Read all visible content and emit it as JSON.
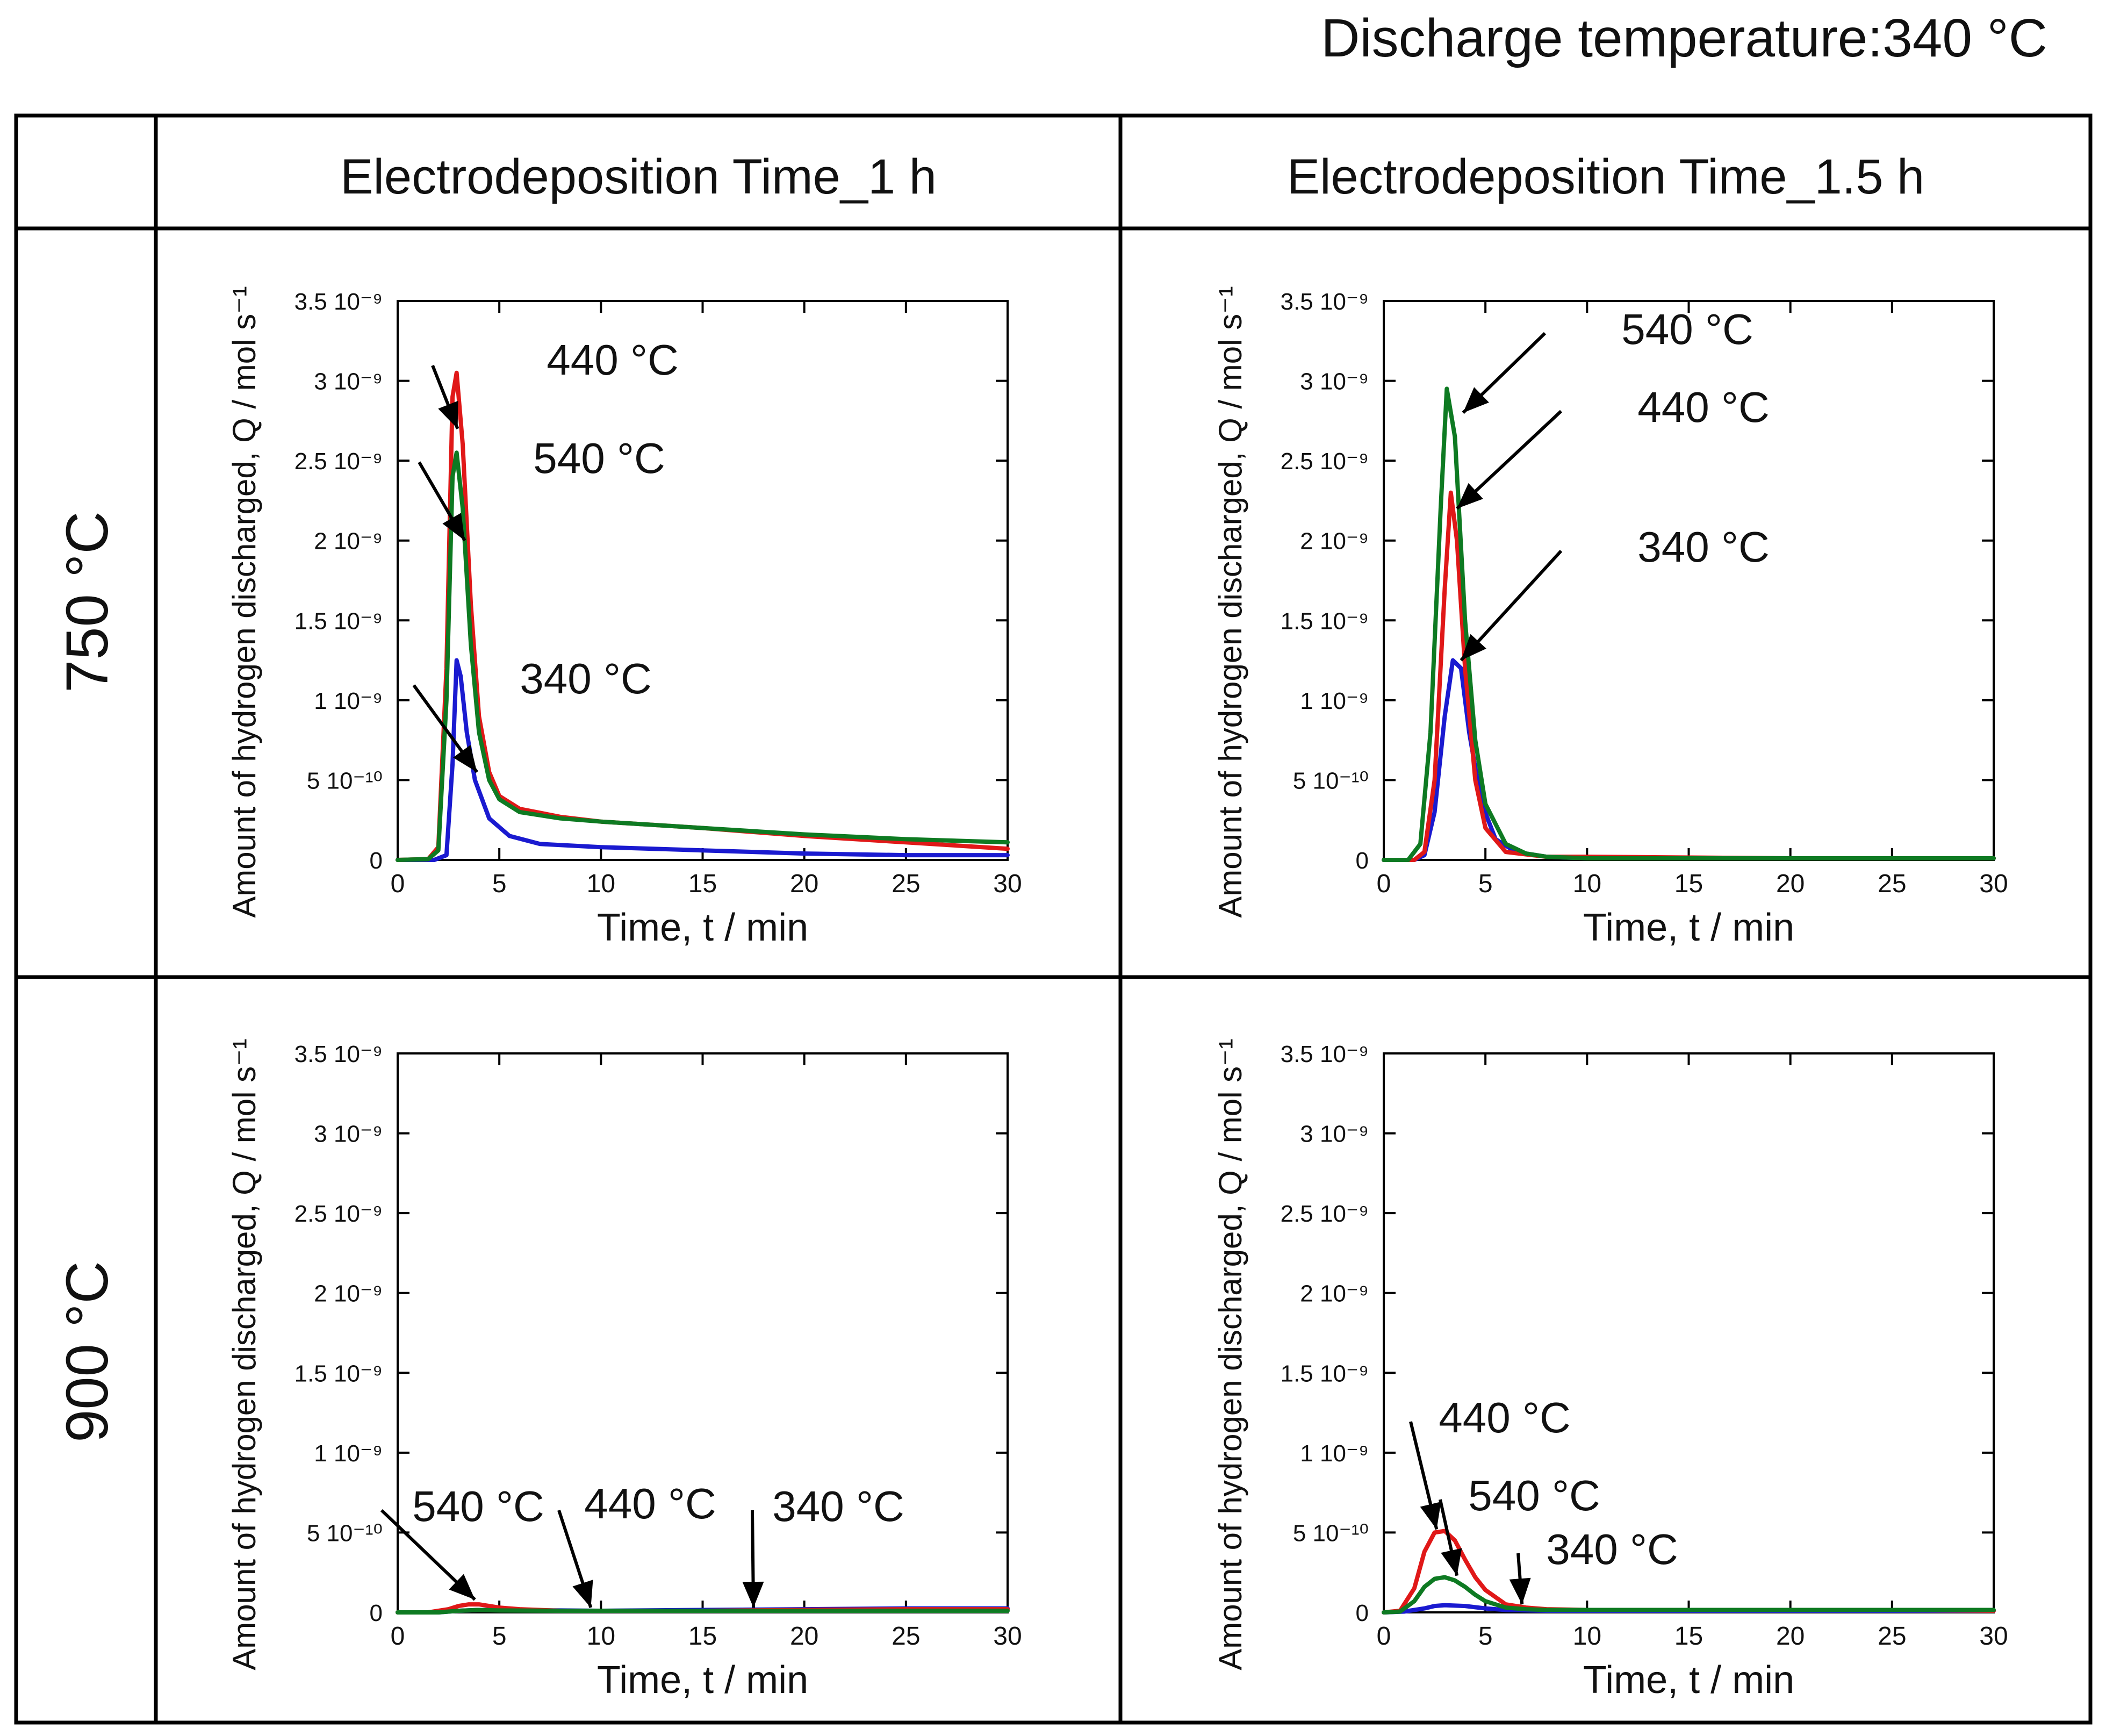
{
  "header": {
    "title": "Discharge temperature:340 °C"
  },
  "columns": [
    "Electrodeposition Time_1 h",
    "Electrodeposition Time_1.5 h"
  ],
  "rows": [
    "750 °C",
    "900 °C"
  ],
  "axis": {
    "ylabel": "Amount of hydrogen discharged, Q / mol s⁻¹",
    "xlabel": "Time, t / min",
    "yticks": [
      "0",
      "5 10⁻¹⁰",
      "1 10⁻⁹",
      "1.5 10⁻⁹",
      "2 10⁻⁹",
      "2.5 10⁻⁹",
      "3 10⁻⁹",
      "3.5 10⁻⁹"
    ],
    "xticks": [
      "0",
      "5",
      "10",
      "15",
      "20",
      "25",
      "30"
    ]
  },
  "colors": {
    "340": "#1a1ad0",
    "440": "#e01818",
    "540": "#0e7a22"
  },
  "chart_data": [
    {
      "type": "line",
      "title": "Electrodeposition Time_1 h / 750 °C",
      "xlabel": "Time, t / min",
      "ylabel": "Amount of hydrogen discharged, Q / mol s⁻¹",
      "xlim": [
        0,
        30
      ],
      "ylim": [
        0,
        3.5e-09
      ],
      "series": [
        {
          "name": "340 °C",
          "color": "#1a1ad0",
          "x": [
            0,
            1.8,
            2.4,
            2.7,
            2.9,
            3.1,
            3.4,
            3.8,
            4.5,
            5.5,
            7,
            10,
            15,
            20,
            25,
            30
          ],
          "y": [
            0,
            0,
            3e-11,
            6e-10,
            1.25e-09,
            1.15e-09,
            8e-10,
            5e-10,
            2.6e-10,
            1.5e-10,
            1e-10,
            8e-11,
            6e-11,
            4e-11,
            3e-11,
            3e-11
          ]
        },
        {
          "name": "440 °C",
          "color": "#e01818",
          "x": [
            0,
            1.5,
            2,
            2.4,
            2.7,
            2.9,
            3.2,
            3.6,
            4,
            4.5,
            5,
            6,
            8,
            10,
            15,
            20,
            25,
            30
          ],
          "y": [
            0,
            5e-12,
            8e-11,
            1.2e-09,
            2.9e-09,
            3.05e-09,
            2.6e-09,
            1.6e-09,
            9e-10,
            5.5e-10,
            4e-10,
            3.2e-10,
            2.7e-10,
            2.4e-10,
            2e-10,
            1.5e-10,
            1.1e-10,
            7e-11
          ]
        },
        {
          "name": "540 °C",
          "color": "#0e7a22",
          "x": [
            0,
            1.5,
            2,
            2.4,
            2.7,
            2.9,
            3.2,
            3.6,
            4,
            4.5,
            5,
            6,
            8,
            10,
            15,
            20,
            25,
            30
          ],
          "y": [
            0,
            5e-12,
            6e-11,
            1e-09,
            2.4e-09,
            2.55e-09,
            2.2e-09,
            1.35e-09,
            8e-10,
            5e-10,
            3.8e-10,
            3e-10,
            2.6e-10,
            2.4e-10,
            2e-10,
            1.6e-10,
            1.3e-10,
            1.1e-10
          ]
        }
      ],
      "annotations": [
        {
          "text": "440 °C",
          "x": 2.95,
          "y": 2.7e-09
        },
        {
          "text": "540 °C",
          "x": 3.3,
          "y": 2e-09
        },
        {
          "text": "340 °C",
          "x": 3.9,
          "y": 5.5e-10
        }
      ]
    },
    {
      "type": "line",
      "title": "Electrodeposition Time_1.5 h / 750 °C",
      "xlabel": "Time, t / min",
      "ylabel": "Amount of hydrogen discharged, Q / mol s⁻¹",
      "xlim": [
        0,
        30
      ],
      "ylim": [
        0,
        3.5e-09
      ],
      "series": [
        {
          "name": "340 °C",
          "color": "#1a1ad0",
          "x": [
            0,
            1.5,
            2,
            2.5,
            3,
            3.4,
            3.8,
            4.2,
            4.8,
            5.5,
            6.5,
            8,
            10,
            15,
            20,
            25,
            30
          ],
          "y": [
            0,
            0,
            3e-11,
            3e-10,
            9e-10,
            1.25e-09,
            1.2e-09,
            8e-10,
            3.6e-10,
            1.3e-10,
            5e-11,
            2e-11,
            1e-11,
            1e-11,
            1e-11,
            1e-11,
            1e-11
          ]
        },
        {
          "name": "440 °C",
          "color": "#e01818",
          "x": [
            0,
            1.5,
            2,
            2.5,
            3,
            3.3,
            3.6,
            4,
            4.5,
            5,
            6,
            8,
            10,
            15,
            20,
            25,
            30
          ],
          "y": [
            0,
            0,
            5e-11,
            5e-10,
            1.7e-09,
            2.3e-09,
            2e-09,
            1.2e-09,
            5e-10,
            2e-10,
            5e-11,
            2e-11,
            2e-11,
            1.5e-11,
            1e-11,
            1e-11,
            1e-11
          ]
        },
        {
          "name": "540 °C",
          "color": "#0e7a22",
          "x": [
            0,
            1.2,
            1.8,
            2.3,
            2.8,
            3.1,
            3.5,
            4,
            4.5,
            5,
            6,
            7,
            8,
            10,
            15,
            20,
            25,
            30
          ],
          "y": [
            0,
            0,
            1e-10,
            8e-10,
            2.2e-09,
            2.95e-09,
            2.65e-09,
            1.5e-09,
            7.5e-10,
            3.5e-10,
            1e-10,
            4e-11,
            2e-11,
            1e-11,
            1e-11,
            1e-11,
            1e-11,
            1e-11
          ]
        }
      ],
      "annotations": [
        {
          "text": "540 °C",
          "x": 3.9,
          "y": 2.8e-09
        },
        {
          "text": "440 °C",
          "x": 3.6,
          "y": 2.2e-09
        },
        {
          "text": "340 °C",
          "x": 3.8,
          "y": 1.25e-09
        }
      ]
    },
    {
      "type": "line",
      "title": "Electrodeposition Time_1 h / 900 °C",
      "xlabel": "Time, t / min",
      "ylabel": "Amount of hydrogen discharged, Q / mol s⁻¹",
      "xlim": [
        0,
        30
      ],
      "ylim": [
        0,
        3.5e-09
      ],
      "series": [
        {
          "name": "340 °C",
          "color": "#1a1ad0",
          "x": [
            0,
            2,
            3,
            4,
            5,
            8,
            10,
            15,
            20,
            25,
            30
          ],
          "y": [
            0,
            0,
            1e-11,
            1.5e-11,
            1.5e-11,
            1.2e-11,
            1e-11,
            1.5e-11,
            2e-11,
            2.5e-11,
            2.5e-11
          ]
        },
        {
          "name": "440 °C",
          "color": "#e01818",
          "x": [
            0,
            1.5,
            2.5,
            3,
            3.5,
            4,
            4.5,
            5,
            6,
            8,
            10,
            15,
            20,
            25,
            30
          ],
          "y": [
            0,
            0,
            2e-11,
            4e-11,
            5e-11,
            5e-11,
            4e-11,
            3e-11,
            2e-11,
            1e-11,
            1e-11,
            1e-11,
            1.5e-11,
            2e-11,
            2e-11
          ]
        },
        {
          "name": "540 °C",
          "color": "#0e7a22",
          "x": [
            0,
            2,
            3,
            4,
            5,
            8,
            10,
            15,
            20,
            25,
            30
          ],
          "y": [
            0,
            0,
            1e-11,
            1.5e-11,
            1.2e-11,
            1e-11,
            1e-11,
            1e-11,
            1e-11,
            1e-11,
            1e-11
          ]
        }
      ],
      "annotations": [
        {
          "text": "540 °C",
          "x": 3.8,
          "y": 8e-11
        },
        {
          "text": "440 °C",
          "x": 9.5,
          "y": 3e-11
        },
        {
          "text": "340 °C",
          "x": 17.5,
          "y": 3e-11
        }
      ]
    },
    {
      "type": "line",
      "title": "Electrodeposition Time_1.5 h / 900 °C",
      "xlabel": "Time, t / min",
      "ylabel": "Amount of hydrogen discharged, Q / mol s⁻¹",
      "xlim": [
        0,
        30
      ],
      "ylim": [
        0,
        3.5e-09
      ],
      "series": [
        {
          "name": "340 °C",
          "color": "#1a1ad0",
          "x": [
            0,
            1,
            2,
            2.5,
            3,
            4,
            5,
            6,
            8,
            10,
            15,
            20,
            25,
            30
          ],
          "y": [
            0,
            5e-12,
            2.5e-11,
            4e-11,
            4.5e-11,
            4e-11,
            2.5e-11,
            1.5e-11,
            1e-11,
            1e-11,
            1e-11,
            1e-11,
            1e-11,
            1e-11
          ]
        },
        {
          "name": "440 °C",
          "color": "#e01818",
          "x": [
            0,
            0.8,
            1.5,
            2,
            2.5,
            3,
            3.5,
            4,
            4.5,
            5,
            6,
            7,
            8,
            10,
            15,
            20,
            25,
            30
          ],
          "y": [
            0,
            1e-11,
            1.5e-10,
            3.8e-10,
            5e-10,
            5.1e-10,
            4.5e-10,
            3.3e-10,
            2.2e-10,
            1.4e-10,
            5e-11,
            3e-11,
            2e-11,
            1.5e-11,
            1.5e-11,
            1.5e-11,
            1.5e-11,
            1e-11
          ]
        },
        {
          "name": "540 °C",
          "color": "#0e7a22",
          "x": [
            0,
            0.8,
            1.5,
            2,
            2.5,
            3,
            3.5,
            4,
            4.5,
            5,
            6,
            7,
            8,
            10,
            15,
            20,
            25,
            30
          ],
          "y": [
            0,
            5e-12,
            7e-11,
            1.6e-10,
            2.1e-10,
            2.2e-10,
            2e-10,
            1.6e-10,
            1.1e-10,
            7e-11,
            3e-11,
            2e-11,
            1.5e-11,
            1.5e-11,
            1.5e-11,
            1.5e-11,
            1.5e-11,
            1.5e-11
          ]
        }
      ],
      "annotations": [
        {
          "text": "440 °C",
          "x": 2.6,
          "y": 5.2e-10
        },
        {
          "text": "540 °C",
          "x": 3.6,
          "y": 2.3e-10
        },
        {
          "text": "340 °C",
          "x": 6.8,
          "y": 5e-11
        }
      ]
    }
  ]
}
